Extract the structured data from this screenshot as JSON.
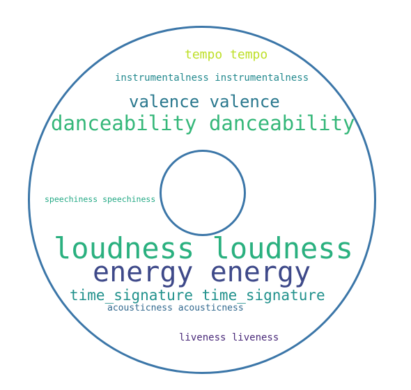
{
  "wordcloud": {
    "words": [
      {
        "id": "tempo",
        "text": "tempo tempo",
        "color": "#bddf26"
      },
      {
        "id": "instrumentalness",
        "text": "instrumentalness instrumentalness",
        "color": "#23898e"
      },
      {
        "id": "valence",
        "text": "valence valence",
        "color": "#2a788e"
      },
      {
        "id": "danceability",
        "text": "danceability danceability",
        "color": "#35b779"
      },
      {
        "id": "speechiness",
        "text": "speechiness speechiness",
        "color": "#22a884"
      },
      {
        "id": "loudness",
        "text": "loudness loudness",
        "color": "#2ab07f"
      },
      {
        "id": "energy",
        "text": "energy energy",
        "color": "#3e4989"
      },
      {
        "id": "time_signature",
        "text": "time_signature time_signature",
        "color": "#21918c"
      },
      {
        "id": "acousticness",
        "text": "acousticness acousticness",
        "color": "#31688e"
      },
      {
        "id": "liveness",
        "text": "liveness liveness",
        "color": "#482878"
      }
    ],
    "shape_color": "#3b76a8"
  }
}
